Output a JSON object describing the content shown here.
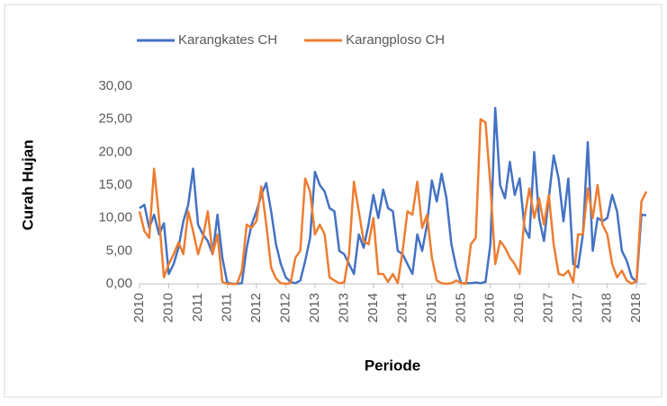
{
  "chart_data": {
    "type": "line",
    "x_label": "Periode",
    "y_label": "Curah Hujan",
    "categories": [
      "2010",
      null,
      null,
      null,
      null,
      null,
      "2010",
      null,
      null,
      null,
      null,
      null,
      "2011",
      null,
      null,
      null,
      null,
      null,
      "2011",
      null,
      null,
      null,
      null,
      null,
      "2012",
      null,
      null,
      null,
      null,
      null,
      "2012",
      null,
      null,
      null,
      null,
      null,
      "2013",
      null,
      null,
      null,
      null,
      null,
      "2013",
      null,
      null,
      null,
      null,
      null,
      "2014",
      null,
      null,
      null,
      null,
      null,
      "2014",
      null,
      null,
      null,
      null,
      null,
      "2015",
      null,
      null,
      null,
      null,
      null,
      "2015",
      null,
      null,
      null,
      null,
      null,
      "2016",
      null,
      null,
      null,
      null,
      null,
      "2016",
      null,
      null,
      null,
      null,
      null,
      "2017",
      null,
      null,
      null,
      null,
      null,
      "2017",
      null,
      null,
      null,
      null,
      null,
      "2018",
      null,
      null,
      null,
      null,
      null,
      "2018",
      null,
      null
    ],
    "series": [
      {
        "name": "Karangkates CH",
        "color": "#4472c4",
        "values": [
          11.5,
          12,
          8.5,
          10.5,
          7.5,
          9.2,
          1.5,
          3,
          5.5,
          9.5,
          12,
          17.5,
          9,
          7.5,
          6.5,
          4.5,
          10.5,
          4,
          0.2,
          0,
          0,
          0.1,
          5.5,
          9,
          11,
          13.5,
          15.3,
          11,
          6,
          3,
          1,
          0.3,
          0.1,
          0.5,
          3.5,
          7,
          17,
          15,
          14,
          11.5,
          11,
          5,
          4.5,
          3,
          1.5,
          7.5,
          5.5,
          9,
          13.5,
          10,
          14.3,
          11.5,
          11,
          5,
          4.5,
          3,
          1.5,
          7.5,
          5,
          9,
          15.7,
          12.5,
          16.7,
          13,
          6,
          2.5,
          0.1,
          0.1,
          0.1,
          0.2,
          0.1,
          0.3,
          6,
          26.7,
          15,
          13,
          18.5,
          13.5,
          16,
          8.5,
          7,
          20,
          10,
          6.5,
          13,
          19.5,
          16,
          9.5,
          16,
          3,
          2.5,
          7.5,
          21.5,
          5,
          10,
          9.5,
          10,
          13.5,
          11,
          5,
          3.5,
          1,
          0.3,
          10.5,
          10.4
        ]
      },
      {
        "name": "Karangploso CH",
        "color": "#ed7d31",
        "values": [
          11,
          8,
          7,
          17.5,
          10,
          1,
          3,
          4.5,
          6.3,
          4.5,
          11,
          8,
          4.5,
          7,
          11,
          4.5,
          7.5,
          0.3,
          0,
          0,
          0,
          2,
          9,
          8.5,
          9.5,
          14.8,
          9,
          2.5,
          0.8,
          0.1,
          0,
          0.1,
          4,
          5,
          16,
          14,
          7.5,
          9,
          7.5,
          1,
          0.5,
          0.1,
          0.2,
          4.5,
          15.5,
          11,
          6.5,
          6,
          10,
          1.5,
          1.5,
          0.3,
          1.5,
          0.1,
          5,
          11,
          10.5,
          15.5,
          8.5,
          10.5,
          4,
          0.5,
          0.1,
          0,
          0.1,
          0.5,
          0.1,
          0,
          6,
          7,
          25,
          24.5,
          15,
          3,
          6.5,
          5.5,
          4,
          3,
          1.5,
          10,
          14.5,
          10,
          13,
          9,
          13.5,
          6,
          1.5,
          1.3,
          2,
          0.2,
          7.5,
          7.5,
          14.5,
          10,
          15,
          9,
          7.5,
          3,
          1,
          2,
          0.5,
          0,
          0.5,
          12.5,
          14
        ]
      }
    ],
    "ylim": [
      0,
      30
    ],
    "yticks": [
      {
        "value": 0,
        "label": "0,00"
      },
      {
        "value": 5,
        "label": "5,00"
      },
      {
        "value": 10,
        "label": "10,00"
      },
      {
        "value": 15,
        "label": "15,00"
      },
      {
        "value": 20,
        "label": "20,00"
      },
      {
        "value": 25,
        "label": "25,00"
      },
      {
        "value": 30,
        "label": "30,00"
      }
    ],
    "legend": "top",
    "grid": false
  }
}
